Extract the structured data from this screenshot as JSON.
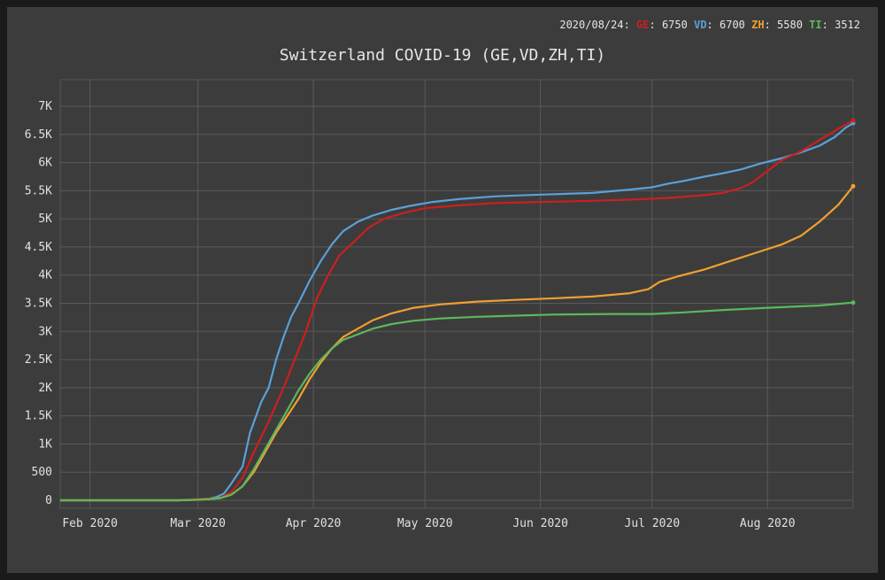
{
  "legend": {
    "date": "2020/08/24",
    "entries": [
      {
        "key": "GE",
        "value": "6750",
        "color": "#cc1f1f"
      },
      {
        "key": "VD",
        "value": "6700",
        "color": "#5aa0d8"
      },
      {
        "key": "ZH",
        "value": "5580",
        "color": "#f0a030"
      },
      {
        "key": "TI",
        "value": "3512",
        "color": "#5cb85c"
      }
    ]
  },
  "chart_data": {
    "type": "line",
    "title": "Switzerland COVID-19 (GE,VD,ZH,TI)",
    "xlabel": "",
    "ylabel": "",
    "x_domain": [
      "2020-01-24",
      "2020-08-24"
    ],
    "ylim": [
      0,
      7250
    ],
    "grid": true,
    "legend_position": "top-right",
    "x_ticks": [
      {
        "date": "2020-02-01",
        "label": "Feb 2020"
      },
      {
        "date": "2020-03-01",
        "label": "Mar 2020"
      },
      {
        "date": "2020-04-01",
        "label": "Apr 2020"
      },
      {
        "date": "2020-05-01",
        "label": "May 2020"
      },
      {
        "date": "2020-06-01",
        "label": "Jun 2020"
      },
      {
        "date": "2020-07-01",
        "label": "Jul 2020"
      },
      {
        "date": "2020-08-01",
        "label": "Aug 2020"
      }
    ],
    "y_ticks": [
      {
        "value": 0,
        "label": "0"
      },
      {
        "value": 500,
        "label": "500"
      },
      {
        "value": 1000,
        "label": "1K"
      },
      {
        "value": 1500,
        "label": "1.5K"
      },
      {
        "value": 2000,
        "label": "2K"
      },
      {
        "value": 2500,
        "label": "2.5K"
      },
      {
        "value": 3000,
        "label": "3K"
      },
      {
        "value": 3500,
        "label": "3.5K"
      },
      {
        "value": 4000,
        "label": "4K"
      },
      {
        "value": 4500,
        "label": "4.5K"
      },
      {
        "value": 5000,
        "label": "5K"
      },
      {
        "value": 5500,
        "label": "5.5K"
      },
      {
        "value": 6000,
        "label": "6K"
      },
      {
        "value": 6500,
        "label": "6.5K"
      },
      {
        "value": 7000,
        "label": "7K"
      }
    ],
    "series": [
      {
        "name": "VD",
        "color": "#5aa0d8",
        "points": [
          [
            "2020-01-24",
            0
          ],
          [
            "2020-02-25",
            0
          ],
          [
            "2020-03-01",
            20
          ],
          [
            "2020-03-04",
            30
          ],
          [
            "2020-03-06",
            60
          ],
          [
            "2020-03-08",
            120
          ],
          [
            "2020-03-10",
            300
          ],
          [
            "2020-03-13",
            600
          ],
          [
            "2020-03-15",
            1200
          ],
          [
            "2020-03-18",
            1750
          ],
          [
            "2020-03-20",
            2000
          ],
          [
            "2020-03-22",
            2500
          ],
          [
            "2020-03-24",
            2900
          ],
          [
            "2020-03-26",
            3250
          ],
          [
            "2020-03-28",
            3500
          ],
          [
            "2020-03-31",
            3900
          ],
          [
            "2020-04-03",
            4250
          ],
          [
            "2020-04-06",
            4550
          ],
          [
            "2020-04-09",
            4780
          ],
          [
            "2020-04-13",
            4950
          ],
          [
            "2020-04-17",
            5060
          ],
          [
            "2020-04-22",
            5160
          ],
          [
            "2020-04-27",
            5230
          ],
          [
            "2020-05-03",
            5300
          ],
          [
            "2020-05-10",
            5350
          ],
          [
            "2020-05-20",
            5400
          ],
          [
            "2020-06-01",
            5430
          ],
          [
            "2020-06-15",
            5460
          ],
          [
            "2020-06-25",
            5520
          ],
          [
            "2020-07-01",
            5560
          ],
          [
            "2020-07-05",
            5620
          ],
          [
            "2020-07-10",
            5680
          ],
          [
            "2020-07-15",
            5750
          ],
          [
            "2020-07-20",
            5810
          ],
          [
            "2020-07-25",
            5880
          ],
          [
            "2020-07-30",
            5980
          ],
          [
            "2020-08-05",
            6080
          ],
          [
            "2020-08-10",
            6180
          ],
          [
            "2020-08-15",
            6300
          ],
          [
            "2020-08-19",
            6450
          ],
          [
            "2020-08-22",
            6620
          ],
          [
            "2020-08-24",
            6700
          ]
        ]
      },
      {
        "name": "GE",
        "color": "#cc1f1f",
        "points": [
          [
            "2020-01-24",
            0
          ],
          [
            "2020-02-25",
            0
          ],
          [
            "2020-03-01",
            20
          ],
          [
            "2020-03-04",
            30
          ],
          [
            "2020-03-07",
            40
          ],
          [
            "2020-03-10",
            150
          ],
          [
            "2020-03-13",
            400
          ],
          [
            "2020-03-16",
            850
          ],
          [
            "2020-03-20",
            1400
          ],
          [
            "2020-03-24",
            2000
          ],
          [
            "2020-03-27",
            2500
          ],
          [
            "2020-03-30",
            3000
          ],
          [
            "2020-04-02",
            3600
          ],
          [
            "2020-04-05",
            4000
          ],
          [
            "2020-04-08",
            4350
          ],
          [
            "2020-04-12",
            4600
          ],
          [
            "2020-04-16",
            4850
          ],
          [
            "2020-04-20",
            5000
          ],
          [
            "2020-04-25",
            5100
          ],
          [
            "2020-05-01",
            5190
          ],
          [
            "2020-05-10",
            5240
          ],
          [
            "2020-05-20",
            5280
          ],
          [
            "2020-06-01",
            5300
          ],
          [
            "2020-06-15",
            5320
          ],
          [
            "2020-06-25",
            5340
          ],
          [
            "2020-07-05",
            5370
          ],
          [
            "2020-07-15",
            5420
          ],
          [
            "2020-07-20",
            5460
          ],
          [
            "2020-07-25",
            5550
          ],
          [
            "2020-07-28",
            5650
          ],
          [
            "2020-08-01",
            5850
          ],
          [
            "2020-08-05",
            6050
          ],
          [
            "2020-08-10",
            6200
          ],
          [
            "2020-08-15",
            6400
          ],
          [
            "2020-08-20",
            6600
          ],
          [
            "2020-08-24",
            6750
          ]
        ]
      },
      {
        "name": "ZH",
        "color": "#f0a030",
        "points": [
          [
            "2020-01-24",
            0
          ],
          [
            "2020-02-25",
            0
          ],
          [
            "2020-03-01",
            10
          ],
          [
            "2020-03-04",
            20
          ],
          [
            "2020-03-07",
            40
          ],
          [
            "2020-03-10",
            100
          ],
          [
            "2020-03-13",
            250
          ],
          [
            "2020-03-16",
            500
          ],
          [
            "2020-03-19",
            850
          ],
          [
            "2020-03-22",
            1200
          ],
          [
            "2020-03-25",
            1500
          ],
          [
            "2020-03-28",
            1800
          ],
          [
            "2020-03-31",
            2150
          ],
          [
            "2020-04-03",
            2450
          ],
          [
            "2020-04-06",
            2700
          ],
          [
            "2020-04-09",
            2900
          ],
          [
            "2020-04-13",
            3050
          ],
          [
            "2020-04-17",
            3200
          ],
          [
            "2020-04-22",
            3320
          ],
          [
            "2020-04-28",
            3420
          ],
          [
            "2020-05-05",
            3480
          ],
          [
            "2020-05-15",
            3530
          ],
          [
            "2020-05-25",
            3560
          ],
          [
            "2020-06-05",
            3590
          ],
          [
            "2020-06-15",
            3620
          ],
          [
            "2020-06-25",
            3680
          ],
          [
            "2020-06-30",
            3750
          ],
          [
            "2020-07-03",
            3880
          ],
          [
            "2020-07-08",
            3980
          ],
          [
            "2020-07-15",
            4100
          ],
          [
            "2020-07-22",
            4250
          ],
          [
            "2020-07-30",
            4420
          ],
          [
            "2020-08-05",
            4550
          ],
          [
            "2020-08-10",
            4700
          ],
          [
            "2020-08-15",
            4950
          ],
          [
            "2020-08-20",
            5250
          ],
          [
            "2020-08-24",
            5580
          ]
        ]
      },
      {
        "name": "TI",
        "color": "#5cb85c",
        "points": [
          [
            "2020-01-24",
            0
          ],
          [
            "2020-02-25",
            0
          ],
          [
            "2020-03-01",
            10
          ],
          [
            "2020-03-04",
            20
          ],
          [
            "2020-03-07",
            40
          ],
          [
            "2020-03-10",
            100
          ],
          [
            "2020-03-13",
            250
          ],
          [
            "2020-03-16",
            550
          ],
          [
            "2020-03-19",
            900
          ],
          [
            "2020-03-22",
            1250
          ],
          [
            "2020-03-25",
            1600
          ],
          [
            "2020-03-28",
            1950
          ],
          [
            "2020-03-31",
            2250
          ],
          [
            "2020-04-03",
            2500
          ],
          [
            "2020-04-06",
            2700
          ],
          [
            "2020-04-09",
            2850
          ],
          [
            "2020-04-13",
            2950
          ],
          [
            "2020-04-17",
            3050
          ],
          [
            "2020-04-22",
            3130
          ],
          [
            "2020-04-28",
            3190
          ],
          [
            "2020-05-05",
            3230
          ],
          [
            "2020-05-15",
            3260
          ],
          [
            "2020-05-25",
            3280
          ],
          [
            "2020-06-05",
            3300
          ],
          [
            "2020-06-20",
            3310
          ],
          [
            "2020-07-01",
            3310
          ],
          [
            "2020-07-10",
            3340
          ],
          [
            "2020-07-20",
            3380
          ],
          [
            "2020-08-01",
            3420
          ],
          [
            "2020-08-15",
            3460
          ],
          [
            "2020-08-24",
            3512
          ]
        ]
      }
    ]
  }
}
